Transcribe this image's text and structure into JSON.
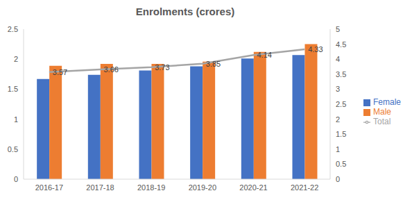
{
  "chart_data": {
    "type": "bar",
    "title": "Enrolments (crores)",
    "categories": [
      "2016-17",
      "2017-18",
      "2018-19",
      "2019-20",
      "2020-21",
      "2021-22"
    ],
    "series": [
      {
        "name": "Female",
        "type": "bar",
        "color": "#4472c4",
        "values": [
          1.67,
          1.74,
          1.81,
          1.88,
          2.01,
          2.07
        ]
      },
      {
        "name": "Male",
        "type": "bar",
        "color": "#ed7d31",
        "values": [
          1.89,
          1.92,
          1.92,
          1.96,
          2.12,
          2.25
        ]
      },
      {
        "name": "Total",
        "type": "line",
        "axis": "y2",
        "color": "#a5a5a5",
        "marker": "none",
        "data_labels": true,
        "values": [
          3.57,
          3.66,
          3.73,
          3.85,
          4.14,
          4.33
        ]
      }
    ],
    "ylim": [
      0,
      2.5
    ],
    "yticks": [
      0,
      0.5,
      1,
      1.5,
      2,
      2.5
    ],
    "y2lim": [
      0,
      5
    ],
    "y2ticks": [
      0,
      0.5,
      1,
      1.5,
      2,
      2.5,
      3,
      3.5,
      4,
      4.5,
      5
    ],
    "grid": false,
    "legend": "right"
  }
}
